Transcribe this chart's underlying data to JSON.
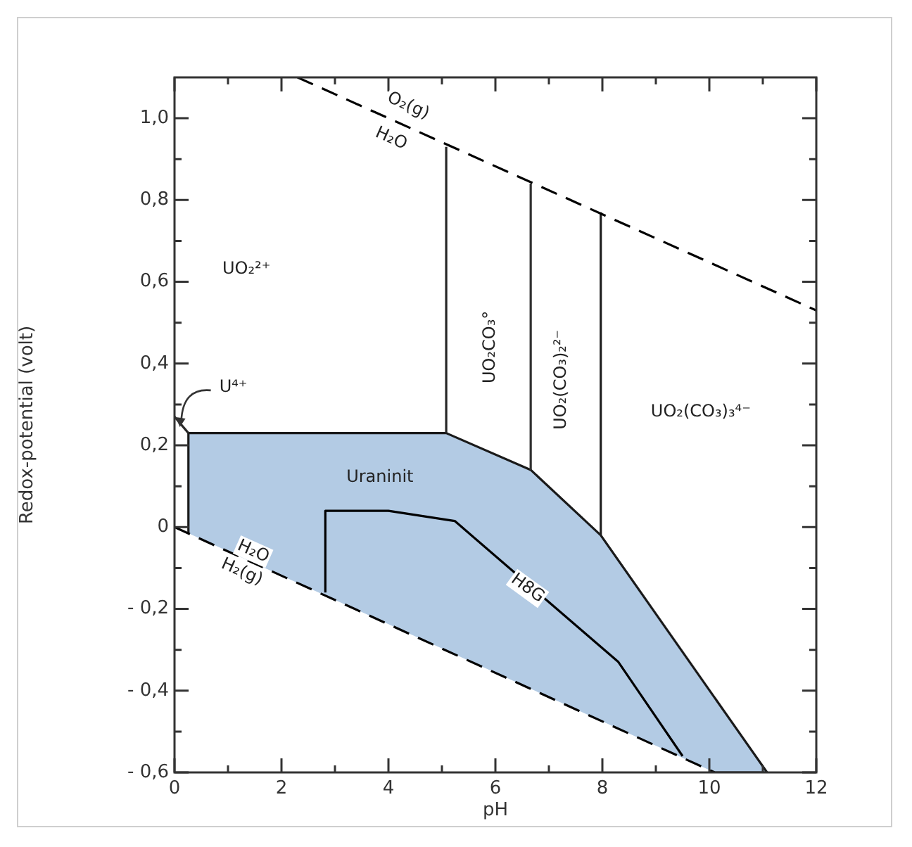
{
  "chart_data": {
    "type": "line",
    "xlabel": "pH",
    "ylabel": "Redox-potential (volt)",
    "xlim": [
      0,
      12
    ],
    "ylim": [
      -0.6,
      1.1
    ],
    "xticks": [
      0,
      {
        "value": 1,
        "label": null
      },
      2,
      {
        "value": 3,
        "label": null
      },
      4,
      {
        "value": 5,
        "label": null
      },
      6,
      {
        "value": 7,
        "label": null
      },
      8,
      {
        "value": 9,
        "label": null
      },
      10,
      {
        "value": 11,
        "label": null
      },
      12
    ],
    "yticks": [
      {
        "value": -0.6,
        "label": "- 0,6"
      },
      {
        "value": -0.5,
        "label": null
      },
      {
        "value": -0.4,
        "label": "- 0,4"
      },
      {
        "value": -0.3,
        "label": null
      },
      {
        "value": -0.2,
        "label": "- 0,2"
      },
      {
        "value": -0.1,
        "label": null
      },
      0,
      {
        "value": 0.1,
        "label": null
      },
      {
        "value": 0.2,
        "label": "0,2"
      },
      {
        "value": 0.3,
        "label": null
      },
      {
        "value": 0.4,
        "label": "0,4"
      },
      {
        "value": 0.5,
        "label": null
      },
      {
        "value": 0.6,
        "label": "0,6"
      },
      {
        "value": 0.7,
        "label": null
      },
      {
        "value": 0.8,
        "label": "0,8"
      },
      {
        "value": 0.9,
        "label": null
      },
      {
        "value": 1.0,
        "label": "1,0"
      }
    ],
    "grid": false,
    "legend": false,
    "marker": "none",
    "series": [
      {
        "type": "line",
        "color": "#000000",
        "line_style": "dashed",
        "x": [
          2.3,
          12
        ],
        "values": [
          1.1,
          0.53
        ]
      },
      {
        "type": "line",
        "color": "#000000",
        "line_style": "dashed",
        "x": [
          0,
          10.1
        ],
        "values": [
          0,
          -0.6
        ]
      },
      {
        "type": "line",
        "color": "#2a2a2a",
        "line_style": "solid",
        "x": [
          0,
          0.26
        ],
        "values": [
          0.27,
          0.23
        ]
      },
      {
        "type": "line",
        "color": "#262626",
        "line_style": "solid",
        "x": [
          5.08,
          5.08
        ],
        "values": [
          0.23,
          0.93
        ]
      },
      {
        "type": "line",
        "color": "#303030",
        "line_style": "solid",
        "x": [
          6.66,
          6.66
        ],
        "values": [
          0.14,
          0.84
        ]
      },
      {
        "type": "line",
        "color": "#1e1e1e",
        "line_style": "solid",
        "x": [
          7.97,
          7.97
        ],
        "values": [
          -0.02,
          0.77
        ]
      },
      {
        "type": "line",
        "color": "#000000",
        "line_style": "solid",
        "x": [
          2.82,
          2.82,
          4.0,
          5.24,
          8.3,
          9.5
        ],
        "values": [
          -0.16,
          0.04,
          0.04,
          0.015,
          -0.33,
          -0.56
        ]
      },
      {
        "type": "area",
        "color": "#b3cbe4",
        "x": [
          0.26,
          0.26,
          5.08,
          6.66,
          7.97,
          11.08,
          10.1
        ],
        "values": [
          -0.015,
          0.23,
          0.23,
          0.14,
          -0.02,
          -0.6,
          -0.6
        ]
      }
    ],
    "annotations": [
      "UO₂²⁺",
      "UO₂CO₃°",
      "UO₂(CO₃)₂²⁻",
      "UO₂(CO₃)₃⁴⁻",
      {
        "text": "U⁴⁺",
        "x": 0.1,
        "y": 0.245
      },
      "Uraninit",
      {
        "text": "H8G",
        "x": 6.6,
        "y": -0.15
      },
      {
        "text": "O₂(g)",
        "x": 4.37,
        "y": 1.03
      },
      {
        "text": "H₂O",
        "x": 4.05,
        "y": 0.95
      },
      {
        "text": "H₂O",
        "x": 1.47,
        "y": -0.06
      },
      {
        "text": "H₂(g)",
        "x": 1.26,
        "y": -0.11
      }
    ]
  }
}
